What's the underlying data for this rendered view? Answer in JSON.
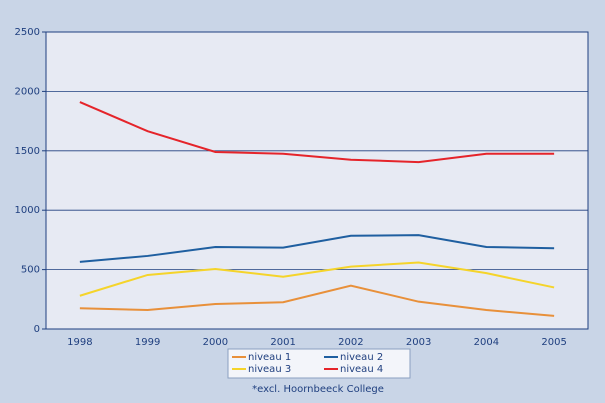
{
  "chart_data": {
    "type": "line",
    "categories": [
      "1998",
      "1999",
      "2000",
      "2001",
      "2002",
      "2003",
      "2004",
      "2005"
    ],
    "series": [
      {
        "name": "niveau 1",
        "color": "#e8903a",
        "values": [
          175,
          160,
          210,
          225,
          365,
          230,
          160,
          110
        ]
      },
      {
        "name": "niveau 2",
        "color": "#1f5fa0",
        "values": [
          565,
          615,
          690,
          685,
          785,
          790,
          690,
          680
        ]
      },
      {
        "name": "niveau 3",
        "color": "#f5d42a",
        "values": [
          280,
          455,
          505,
          440,
          525,
          560,
          470,
          350
        ]
      },
      {
        "name": "niveau 4",
        "color": "#e5242a",
        "values": [
          1910,
          1665,
          1490,
          1475,
          1425,
          1405,
          1475,
          1475
        ]
      }
    ],
    "ylim": [
      0,
      2500
    ],
    "yticks": [
      0,
      500,
      1000,
      1500,
      2000,
      2500
    ],
    "grid": true,
    "annotation": "*excl. Hoornbeeck College"
  }
}
